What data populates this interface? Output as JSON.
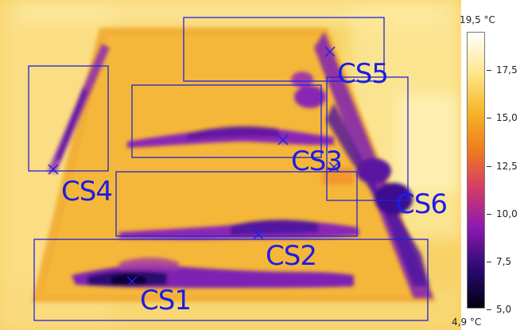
{
  "scale": {
    "max_label": "19,5 °C",
    "min_label": "4,9 °C",
    "ticks": [
      {
        "value": 17.5,
        "label": "17,5"
      },
      {
        "value": 15.0,
        "label": "15,0"
      },
      {
        "value": 12.5,
        "label": "12,5"
      },
      {
        "value": 10.0,
        "label": "10,0"
      },
      {
        "value": 7.5,
        "label": "7,5"
      },
      {
        "value": 5.0,
        "label": "5,0"
      }
    ]
  },
  "regions": [
    {
      "id": "cs1",
      "label": "CS1"
    },
    {
      "id": "cs2",
      "label": "CS2"
    },
    {
      "id": "cs3",
      "label": "CS3"
    },
    {
      "id": "cs4",
      "label": "CS4"
    },
    {
      "id": "cs5",
      "label": "CS5"
    },
    {
      "id": "cs6",
      "label": "CS6"
    }
  ],
  "colors": {
    "roi": "#2222dd",
    "palette": [
      "#000010",
      "#2a0a70",
      "#8a1ab0",
      "#d23a6a",
      "#f07a1e",
      "#f6b426",
      "#ffe890",
      "#ffffff"
    ]
  }
}
